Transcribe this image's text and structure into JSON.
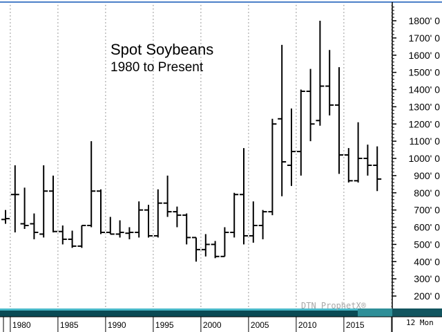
{
  "chart_data": {
    "type": "ohlc",
    "title": "Spot Soybeans",
    "subtitle": "1980 to Present",
    "interval_label": "12 Mon",
    "watermark": "DTN ProphetX®",
    "y_axis": {
      "side": "right",
      "range": [
        120,
        1890
      ],
      "ticks": [
        200,
        300,
        400,
        500,
        600,
        700,
        800,
        900,
        1000,
        1100,
        1200,
        1300,
        1400,
        1500,
        1600,
        1700,
        1800
      ],
      "tick_labels": [
        "200' 0",
        "300' 0",
        "400' 0",
        "500' 0",
        "600' 0",
        "700' 0",
        "800' 0",
        "900' 0",
        "1000' 0",
        "1100' 0",
        "1200' 0",
        "1300' 0",
        "1400' 0",
        "1500' 0",
        "1600' 0",
        "1700' 0",
        "1800' 0"
      ]
    },
    "x_axis": {
      "range": [
        1979,
        2019.5
      ],
      "ticks": [
        1980,
        1985,
        1990,
        1995,
        2000,
        2005,
        2010,
        2015
      ],
      "tick_labels": [
        "1980",
        "1985",
        "1990",
        "1995",
        "2000",
        "2005",
        "2010",
        "2015"
      ]
    },
    "grid": "vertical dashed at year ticks",
    "bars": [
      {
        "year": 1979,
        "open": 645,
        "high": 700,
        "low": 620,
        "close": 650
      },
      {
        "year": 1980,
        "open": 790,
        "high": 960,
        "low": 570,
        "close": 790
      },
      {
        "year": 1981,
        "open": 620,
        "high": 830,
        "low": 590,
        "close": 610
      },
      {
        "year": 1982,
        "open": 620,
        "high": 680,
        "low": 530,
        "close": 570
      },
      {
        "year": 1983,
        "open": 560,
        "high": 960,
        "low": 540,
        "close": 810
      },
      {
        "year": 1984,
        "open": 810,
        "high": 900,
        "low": 570,
        "close": 575
      },
      {
        "year": 1985,
        "open": 575,
        "high": 610,
        "low": 500,
        "close": 530
      },
      {
        "year": 1986,
        "open": 530,
        "high": 580,
        "low": 480,
        "close": 490
      },
      {
        "year": 1987,
        "open": 490,
        "high": 610,
        "low": 480,
        "close": 610
      },
      {
        "year": 1988,
        "open": 610,
        "high": 1100,
        "low": 600,
        "close": 810
      },
      {
        "year": 1989,
        "open": 810,
        "high": 820,
        "low": 560,
        "close": 570
      },
      {
        "year": 1990,
        "open": 570,
        "high": 660,
        "low": 560,
        "close": 560
      },
      {
        "year": 1991,
        "open": 560,
        "high": 640,
        "low": 540,
        "close": 570
      },
      {
        "year": 1992,
        "open": 565,
        "high": 600,
        "low": 530,
        "close": 570
      },
      {
        "year": 1993,
        "open": 570,
        "high": 750,
        "low": 540,
        "close": 700
      },
      {
        "year": 1994,
        "open": 700,
        "high": 730,
        "low": 540,
        "close": 550
      },
      {
        "year": 1995,
        "open": 550,
        "high": 820,
        "low": 540,
        "close": 740
      },
      {
        "year": 1996,
        "open": 740,
        "high": 900,
        "low": 660,
        "close": 690
      },
      {
        "year": 1997,
        "open": 690,
        "high": 720,
        "low": 600,
        "close": 670
      },
      {
        "year": 1998,
        "open": 670,
        "high": 680,
        "low": 500,
        "close": 540
      },
      {
        "year": 1999,
        "open": 540,
        "high": 540,
        "low": 400,
        "close": 470
      },
      {
        "year": 2000,
        "open": 470,
        "high": 560,
        "low": 430,
        "close": 500
      },
      {
        "year": 2001,
        "open": 500,
        "high": 520,
        "low": 420,
        "close": 430
      },
      {
        "year": 2002,
        "open": 430,
        "high": 600,
        "low": 430,
        "close": 570
      },
      {
        "year": 2003,
        "open": 570,
        "high": 800,
        "low": 540,
        "close": 790
      },
      {
        "year": 2004,
        "open": 790,
        "high": 1060,
        "low": 500,
        "close": 550
      },
      {
        "year": 2005,
        "open": 550,
        "high": 750,
        "low": 510,
        "close": 610
      },
      {
        "year": 2006,
        "open": 610,
        "high": 700,
        "low": 530,
        "close": 690
      },
      {
        "year": 2007,
        "open": 690,
        "high": 1230,
        "low": 670,
        "close": 1200
      },
      {
        "year": 2008,
        "open": 1230,
        "high": 1660,
        "low": 780,
        "close": 980
      },
      {
        "year": 2009,
        "open": 960,
        "high": 1290,
        "low": 840,
        "close": 1040
      },
      {
        "year": 2010,
        "open": 1040,
        "high": 1400,
        "low": 900,
        "close": 1390
      },
      {
        "year": 2011,
        "open": 1390,
        "high": 1520,
        "low": 1100,
        "close": 1200
      },
      {
        "year": 2012,
        "open": 1220,
        "high": 1800,
        "low": 1190,
        "close": 1420
      },
      {
        "year": 2013,
        "open": 1420,
        "high": 1630,
        "low": 1250,
        "close": 1310
      },
      {
        "year": 2014,
        "open": 1310,
        "high": 1530,
        "low": 910,
        "close": 1020
      },
      {
        "year": 2015,
        "open": 1020,
        "high": 1060,
        "low": 860,
        "close": 870
      },
      {
        "year": 2016,
        "open": 870,
        "high": 1210,
        "low": 860,
        "close": 1000
      },
      {
        "year": 2017,
        "open": 1000,
        "high": 1080,
        "low": 900,
        "close": 960
      },
      {
        "year": 2018,
        "open": 960,
        "high": 1070,
        "low": 810,
        "close": 880
      }
    ]
  },
  "colors": {
    "bar": "#000000",
    "grid": "#9a9a9a",
    "top_rule": "#4a7fc8",
    "bottom_band_top": "#48b8c8",
    "bottom_band": "#0a4a54",
    "right_strip": "#12555f"
  }
}
